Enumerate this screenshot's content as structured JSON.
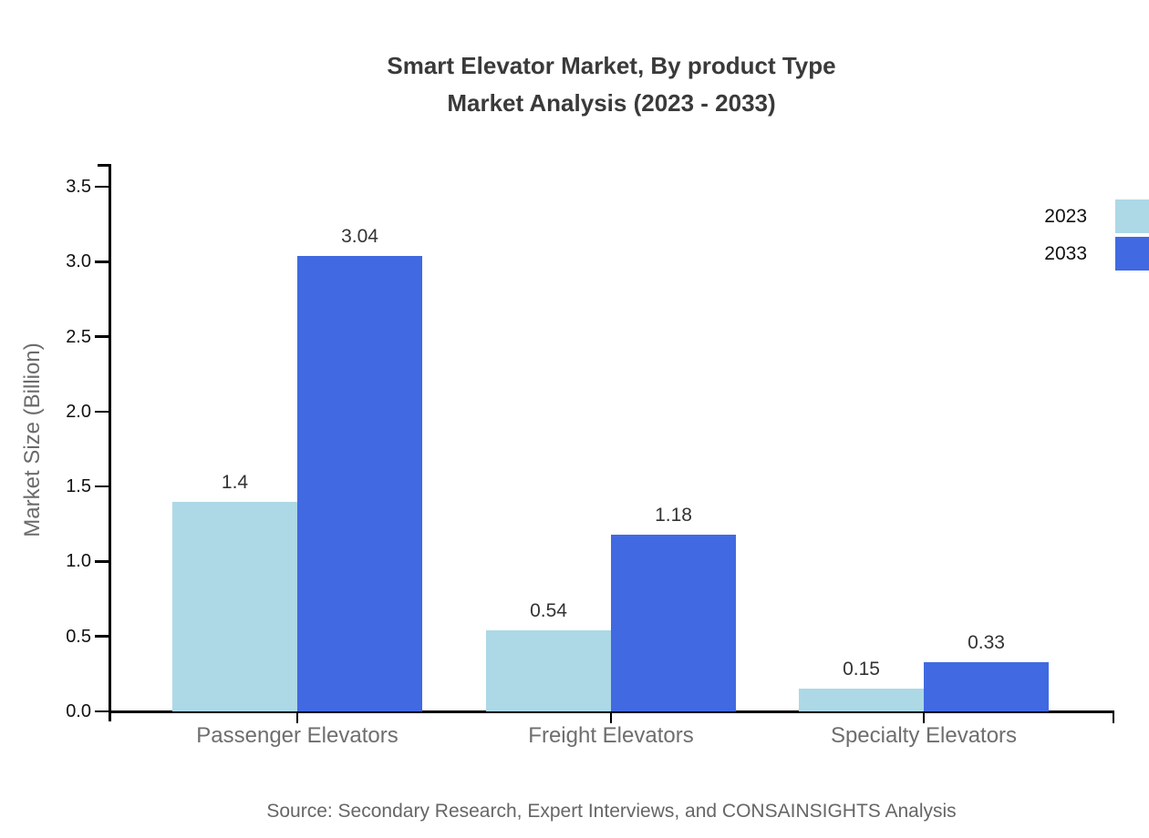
{
  "chart_data": {
    "type": "bar",
    "title": "Smart Elevator Market, By product Type\nMarket Analysis (2023 - 2033)",
    "categories": [
      "Passenger Elevators",
      "Freight Elevators",
      "Specialty Elevators"
    ],
    "series": [
      {
        "name": "2023",
        "color": "#ADD8E6",
        "values": [
          1.4,
          0.54,
          0.15
        ]
      },
      {
        "name": "2033",
        "color": "#4169E1",
        "values": [
          3.04,
          1.18,
          0.33
        ]
      }
    ],
    "value_labels": [
      [
        "1.4",
        "0.54",
        "0.15"
      ],
      [
        "3.04",
        "1.18",
        "0.33"
      ]
    ],
    "xlabel": "",
    "ylabel": "Market Size (Billion)",
    "ylim": [
      0,
      3.5
    ],
    "yticks": [
      "0.0",
      "0.5",
      "1.0",
      "1.5",
      "2.0",
      "2.5",
      "3.0",
      "3.5"
    ],
    "grid": false,
    "legend_position": "right",
    "source": "Source: Secondary Research, Expert Interviews, and CONSAINSIGHTS Analysis"
  },
  "colors": {
    "axis": "#000000",
    "title_text": "#3A3A3A",
    "tick_text": "#111111",
    "muted_text": "#6E6E6E",
    "source_text": "#666666",
    "background": "#FFFFFF"
  }
}
